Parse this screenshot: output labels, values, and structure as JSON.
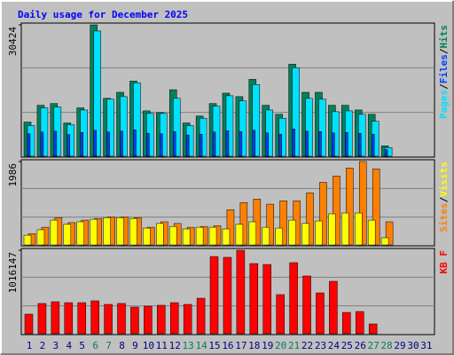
{
  "chart_data": [
    {
      "type": "bar",
      "title": "Daily usage for December 2025",
      "separator": "/",
      "ylim": [
        0,
        30424
      ],
      "yticks": [
        30424
      ],
      "series": [
        {
          "name": "Pages",
          "color": "#00e0ff",
          "values": [
            7100,
            11200,
            11400,
            7300,
            10700,
            29000,
            13200,
            13800,
            17000,
            9900,
            9900,
            13400,
            7100,
            8800,
            11600,
            14000,
            12800,
            16600,
            10700,
            8800,
            20500,
            13400,
            13200,
            10300,
            10500,
            9700,
            8100,
            2000,
            0,
            0,
            0
          ]
        },
        {
          "name": "Files",
          "color": "#0040ff",
          "values": [
            5200,
            5600,
            5800,
            5000,
            5500,
            6000,
            5600,
            5800,
            6100,
            5300,
            5200,
            5700,
            4900,
            5100,
            5600,
            5900,
            5700,
            6000,
            5400,
            5100,
            6300,
            5800,
            5700,
            5400,
            5500,
            5300,
            5100,
            1500,
            0,
            0,
            0
          ]
        },
        {
          "name": "Hits",
          "color": "#00805c",
          "values": [
            7900,
            11800,
            12200,
            7700,
            11200,
            30424,
            13400,
            14800,
            17400,
            10500,
            10100,
            15400,
            7700,
            9300,
            12200,
            14600,
            13800,
            17800,
            11800,
            9700,
            21300,
            14800,
            14800,
            11800,
            11800,
            10700,
            9700,
            2400,
            0,
            0,
            0
          ]
        }
      ]
    },
    {
      "type": "bar",
      "separator": "/",
      "ylim": [
        0,
        1986
      ],
      "yticks": [
        1986
      ],
      "series": [
        {
          "name": "Sites",
          "color": "#ff8000",
          "values": [
            270,
            420,
            650,
            530,
            590,
            630,
            670,
            670,
            650,
            420,
            550,
            510,
            420,
            440,
            460,
            840,
            1010,
            1090,
            970,
            1050,
            1050,
            1240,
            1490,
            1640,
            1830,
            1986,
            1810,
            550,
            0,
            0,
            0
          ]
        },
        {
          "name": "Visits",
          "color": "#ffff00",
          "values": [
            230,
            360,
            590,
            490,
            550,
            610,
            650,
            650,
            630,
            400,
            510,
            440,
            380,
            420,
            420,
            380,
            490,
            550,
            420,
            400,
            590,
            510,
            570,
            740,
            760,
            760,
            590,
            170,
            0,
            0,
            0
          ]
        }
      ]
    },
    {
      "type": "bar",
      "ylim": [
        0,
        1016147
      ],
      "yticks": [
        1016147
      ],
      "categories": [
        "1",
        "2",
        "3",
        "4",
        "5",
        "6",
        "7",
        "8",
        "9",
        "10",
        "11",
        "12",
        "13",
        "14",
        "15",
        "16",
        "17",
        "18",
        "19",
        "20",
        "21",
        "22",
        "23",
        "24",
        "25",
        "26",
        "27",
        "28",
        "29",
        "30",
        "31"
      ],
      "category_colors": [
        "#000080",
        "#000080",
        "#000080",
        "#000080",
        "#000080",
        "#00805c",
        "#00805c",
        "#000080",
        "#000080",
        "#000080",
        "#000080",
        "#000080",
        "#00805c",
        "#00805c",
        "#000080",
        "#000080",
        "#000080",
        "#000080",
        "#000080",
        "#00805c",
        "#00805c",
        "#000080",
        "#000080",
        "#000080",
        "#000080",
        "#000080",
        "#00805c",
        "#00805c",
        "#000080",
        "#000080",
        "#000080"
      ],
      "series": [
        {
          "name": "KB F",
          "color": "#ff0000",
          "values": [
            238000,
            368000,
            389000,
            378000,
            378000,
            400000,
            357000,
            368000,
            324000,
            335000,
            346000,
            378000,
            357000,
            432000,
            940000,
            930000,
            1016147,
            854000,
            843000,
            476000,
            865000,
            703000,
            497000,
            638000,
            259000,
            270000,
            119000,
            0,
            0,
            0,
            0
          ]
        }
      ]
    }
  ]
}
